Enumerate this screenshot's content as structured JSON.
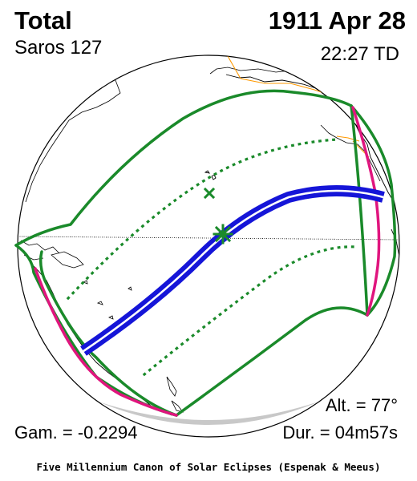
{
  "header": {
    "eclipse_type": "Total",
    "date": "1911 Apr 28",
    "saros": "Saros 127",
    "time": "22:27 TD"
  },
  "footer": {
    "altitude": "Alt. = 77°",
    "gamma": "Gam. = -0.2294",
    "duration": "Dur. = 04m57s",
    "credit": "Five Millennium Canon of Solar Eclipses (Espenak & Meeus)"
  },
  "colors": {
    "penumbral_limits": "#1a8a2a",
    "rise_set_curves": "#e0157e",
    "totality_path": "#1515d8",
    "coastlines": "#000000",
    "borders": "#ff9900"
  },
  "markers": {
    "greatest_eclipse": "asterisk-marker",
    "sub_solar_point": "x-marker"
  }
}
